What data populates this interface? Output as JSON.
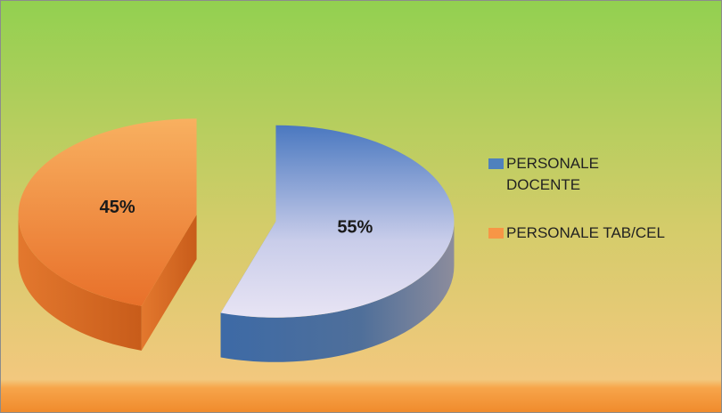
{
  "chart_data": {
    "type": "pie",
    "categories": [
      "PERSONALE DOCENTE",
      "PERSONALE TAB/CEL"
    ],
    "values": [
      55,
      45
    ],
    "value_labels": [
      "55%",
      "45%"
    ],
    "colors": [
      "#4f81bd",
      "#f79646"
    ],
    "legend": "right"
  }
}
